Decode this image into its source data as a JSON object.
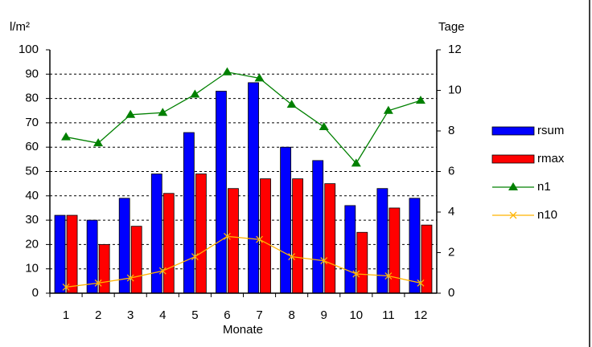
{
  "chart_data": {
    "type": "bar_line",
    "y_label": "l/m²",
    "y2_label": "Tage",
    "x_label": "Monate",
    "categories": [
      "1",
      "2",
      "3",
      "4",
      "5",
      "6",
      "7",
      "8",
      "9",
      "10",
      "11",
      "12"
    ],
    "series": [
      {
        "name": "rsum",
        "type": "bar",
        "color": "#0000ff",
        "values": [
          32,
          30,
          39,
          49,
          66,
          83,
          86.5,
          60,
          54.5,
          36,
          43,
          39
        ]
      },
      {
        "name": "rmax",
        "type": "bar",
        "color": "#ff0000",
        "values": [
          32,
          20,
          27.5,
          41,
          49,
          43,
          47,
          47,
          45,
          25,
          35,
          28
        ]
      },
      {
        "name": "n1",
        "type": "line",
        "axis": "y2",
        "marker": "triangle",
        "color": "#008000",
        "values": [
          7.7,
          7.4,
          8.8,
          8.9,
          9.8,
          10.9,
          10.6,
          9.3,
          8.2,
          6.4,
          9.0,
          9.5
        ]
      },
      {
        "name": "n10",
        "type": "line",
        "axis": "y2",
        "marker": "x",
        "color": "#ffb400",
        "values": [
          0.3,
          0.5,
          0.75,
          1.1,
          1.8,
          2.8,
          2.65,
          1.8,
          1.6,
          0.95,
          0.85,
          0.5
        ]
      }
    ],
    "ylim": [
      0,
      100
    ],
    "yticks": [
      0,
      10,
      20,
      30,
      40,
      50,
      60,
      70,
      80,
      90,
      100
    ],
    "y2lim": [
      0,
      12
    ],
    "y2ticks": [
      0,
      2,
      4,
      6,
      8,
      10,
      12
    ],
    "grid": true,
    "legend": "right"
  }
}
